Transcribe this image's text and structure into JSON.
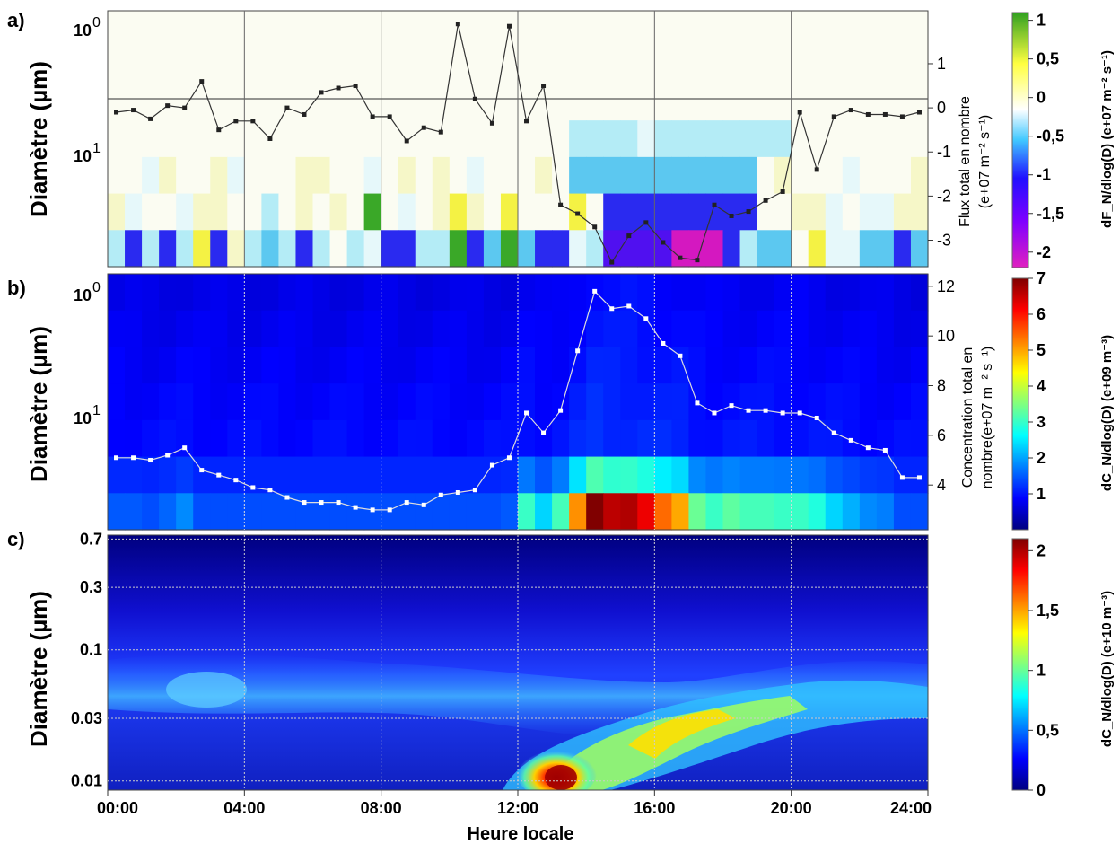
{
  "chart_data": [
    {
      "panel": "a)",
      "type": "heatmap",
      "ylabel": "Diamètre (µm)",
      "y_scale": "log",
      "y_ticks_left": [
        {
          "value": 0.01,
          "base": "10",
          "exp": "0"
        },
        {
          "value": 0.1,
          "base": "10",
          "exp": "1"
        }
      ],
      "right_axis": {
        "label_line1": "Flux total en nombre",
        "label_line2": "(e+07 m⁻² s⁻¹)",
        "ticks": [
          "1",
          "0",
          "-1",
          "-2",
          "-3"
        ],
        "range": [
          -3.6,
          2.2
        ]
      },
      "colorbar": {
        "ticks": [
          "1",
          "0,5",
          "0",
          "-0,5",
          "-1",
          "-1,5",
          "-2"
        ],
        "range": [
          -2.2,
          1.1
        ],
        "label": "dF_N/dlog(D) (e+07 m⁻² s⁻¹)"
      },
      "series": [
        {
          "x_hours": [
            0.25,
            0.75,
            1.25,
            1.75,
            2.25,
            2.75,
            3.25,
            3.75,
            4.25,
            4.75,
            5.25,
            5.75,
            6.25,
            6.75,
            7.25,
            7.75,
            8.25,
            8.75,
            9.25,
            9.75,
            10.25,
            10.75,
            11.25,
            11.75,
            12.25,
            12.75,
            13.25,
            13.75,
            14.25,
            14.75,
            15.25,
            15.75,
            16.25,
            16.75,
            17.25,
            17.75,
            18.25,
            18.75,
            19.25,
            19.75,
            20.25,
            20.75,
            21.25,
            21.75,
            22.25,
            22.75,
            23.25,
            23.75
          ],
          "values": [
            -0.1,
            -0.05,
            -0.25,
            0.05,
            0.0,
            0.6,
            -0.5,
            -0.3,
            -0.3,
            -0.7,
            0.0,
            -0.15,
            0.35,
            0.45,
            0.5,
            -0.2,
            -0.2,
            -0.75,
            -0.45,
            -0.55,
            1.9,
            0.2,
            -0.35,
            1.85,
            -0.3,
            0.5,
            -2.2,
            -2.4,
            -2.7,
            -3.5,
            -2.9,
            -2.6,
            -3.05,
            -3.4,
            -3.45,
            -2.2,
            -2.45,
            -2.35,
            -2.1,
            -1.9,
            -0.1,
            -1.4,
            -0.2,
            -0.05,
            -0.15,
            -0.15,
            -0.2,
            -0.1
          ]
        }
      ]
    },
    {
      "panel": "b)",
      "type": "heatmap",
      "ylabel": "Diamètre (µm)",
      "y_scale": "log",
      "y_ticks_left": [
        {
          "value": 0.01,
          "base": "10",
          "exp": "0"
        },
        {
          "value": 0.1,
          "base": "10",
          "exp": "1"
        }
      ],
      "right_axis": {
        "label_line1": "Concentration total en",
        "label_line2": "nombre(e+07 m⁻² s⁻¹)",
        "ticks": [
          "12",
          "10",
          "8",
          "6",
          "4"
        ],
        "range": [
          2.2,
          12.5
        ]
      },
      "colorbar": {
        "ticks": [
          "7",
          "6",
          "5",
          "4",
          "3",
          "2",
          "1"
        ],
        "range": [
          0,
          7
        ],
        "label": "dC_N/dlog(D) (e+09 m⁻³)"
      },
      "series": [
        {
          "x_hours": [
            0.25,
            0.75,
            1.25,
            1.75,
            2.25,
            2.75,
            3.25,
            3.75,
            4.25,
            4.75,
            5.25,
            5.75,
            6.25,
            6.75,
            7.25,
            7.75,
            8.25,
            8.75,
            9.25,
            9.75,
            10.25,
            10.75,
            11.25,
            11.75,
            12.25,
            12.75,
            13.25,
            13.75,
            14.25,
            14.75,
            15.25,
            15.75,
            16.25,
            16.75,
            17.25,
            17.75,
            18.25,
            18.75,
            19.25,
            19.75,
            20.25,
            20.75,
            21.25,
            21.75,
            22.25,
            22.75,
            23.25,
            23.75
          ],
          "values": [
            5.1,
            5.1,
            5.0,
            5.2,
            5.5,
            4.6,
            4.4,
            4.2,
            3.9,
            3.8,
            3.5,
            3.3,
            3.3,
            3.3,
            3.1,
            3.0,
            3.0,
            3.3,
            3.2,
            3.6,
            3.7,
            3.8,
            4.8,
            5.1,
            6.9,
            6.1,
            7.0,
            9.4,
            11.8,
            11.1,
            11.2,
            10.7,
            9.7,
            9.2,
            7.3,
            6.9,
            7.2,
            7.0,
            7.0,
            6.9,
            6.9,
            6.7,
            6.1,
            5.8,
            5.5,
            5.4,
            4.3,
            4.3
          ]
        }
      ]
    },
    {
      "panel": "c)",
      "type": "heatmap",
      "ylabel": "Diamètre (µm)",
      "y_scale": "log",
      "y_ticks": [
        "0.7",
        "0.3",
        "0.1",
        "0.03",
        "0.01"
      ],
      "colorbar": {
        "ticks": [
          "2",
          "1,5",
          "1",
          "0,5",
          "0"
        ],
        "range": [
          0,
          2.1
        ],
        "label": "dC_N/dlog(D) (e+10 m⁻³)"
      }
    }
  ],
  "x_axis": {
    "label": "Heure locale",
    "ticks": [
      "00:00",
      "04:00",
      "08:00",
      "12:00",
      "16:00",
      "20:00",
      "24:00"
    ]
  }
}
